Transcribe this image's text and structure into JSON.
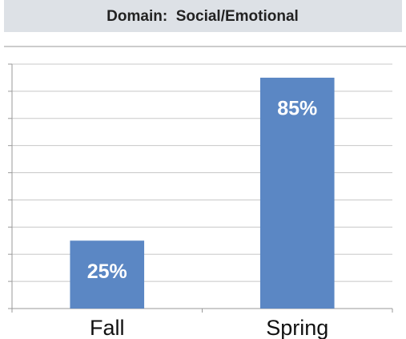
{
  "chart_data": {
    "type": "bar",
    "title": "Domain:  Social/Emotional",
    "categories": [
      "Fall",
      "Spring"
    ],
    "values": [
      25,
      85
    ],
    "value_labels": [
      "25%",
      "85%"
    ],
    "color": "#5b87c4",
    "ylim": [
      0,
      90
    ],
    "yticks": [
      0,
      10,
      20,
      30,
      40,
      50,
      60,
      70,
      80,
      90
    ],
    "grid": true
  }
}
